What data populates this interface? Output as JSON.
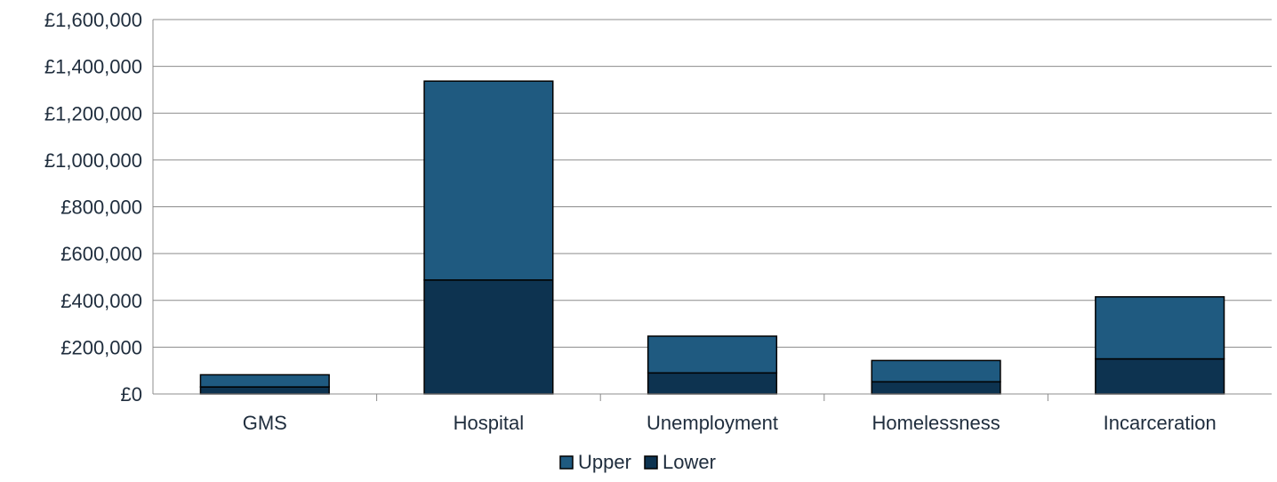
{
  "chart_data": {
    "type": "bar",
    "stacked": true,
    "categories": [
      "GMS",
      "Hospital",
      "Unemployment",
      "Homelessness",
      "Incarceration"
    ],
    "series": [
      {
        "name": "Lower",
        "values": [
          30000,
          487000,
          90000,
          52000,
          150000
        ],
        "color": "#0d3350"
      },
      {
        "name": "Upper",
        "values": [
          52000,
          850000,
          157000,
          91000,
          265000
        ],
        "color": "#1f5a80"
      }
    ],
    "ylim": [
      0,
      1600000
    ],
    "yticks": [
      0,
      200000,
      400000,
      600000,
      800000,
      1000000,
      1200000,
      1400000,
      1600000
    ],
    "ytick_labels": [
      "£0",
      "£200,000",
      "£400,000",
      "£600,000",
      "£800,000",
      "£1,000,000",
      "£1,200,000",
      "£1,400,000",
      "£1,600,000"
    ],
    "grid": true,
    "legend": {
      "position": "bottom",
      "entries": [
        "Upper",
        "Lower"
      ]
    },
    "title": "",
    "xlabel": "",
    "ylabel": ""
  }
}
